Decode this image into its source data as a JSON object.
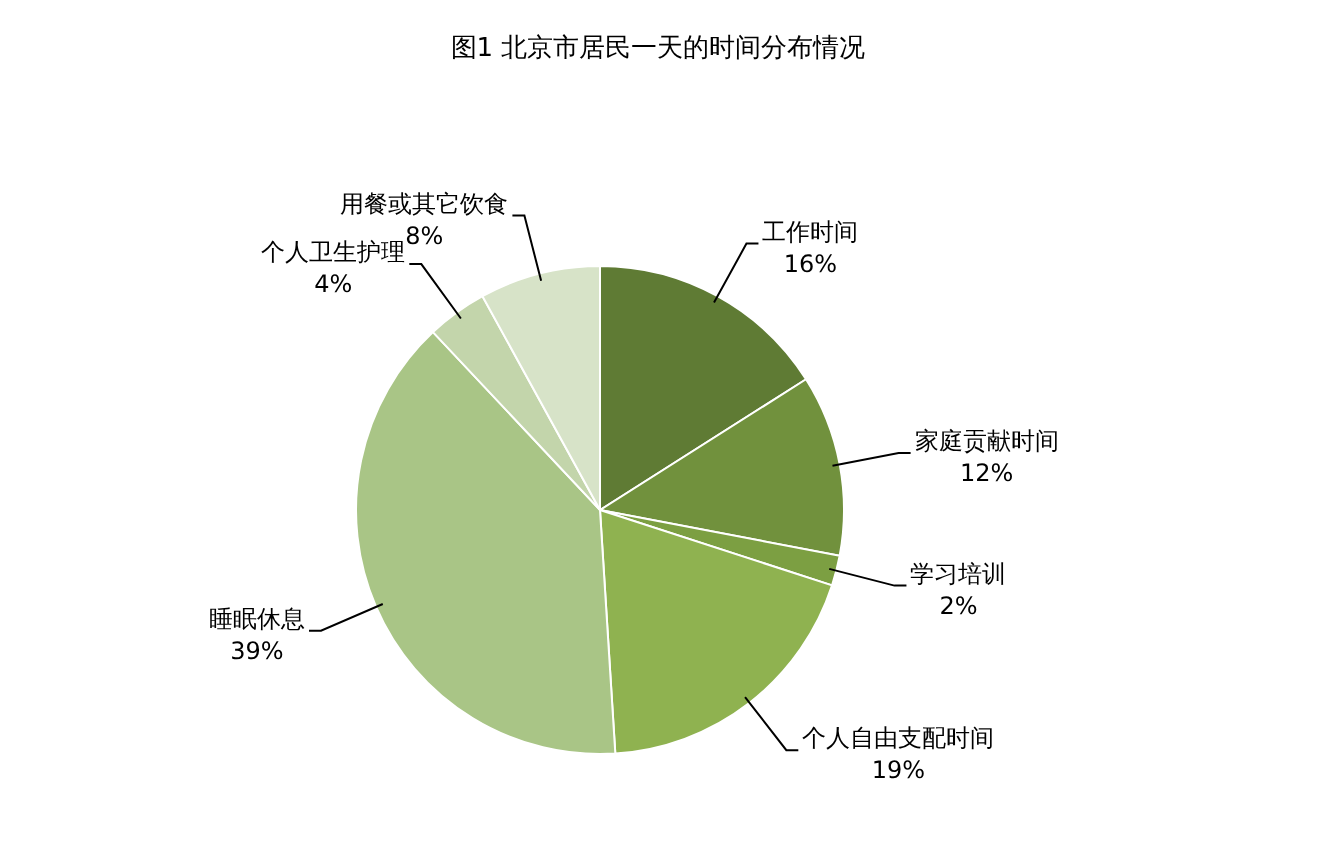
{
  "chart_data": {
    "type": "pie",
    "title": "图1 北京市居民一天的时间分布情况",
    "categories": [
      "工作时间",
      "家庭贡献时间",
      "学习培训",
      "个人自由支配时间",
      "睡眠休息",
      "个人卫生护理",
      "用餐或其它饮食"
    ],
    "values": [
      16,
      12,
      2,
      19,
      39,
      4,
      8
    ],
    "colors": [
      "#5f7b34",
      "#71913d",
      "#7c9f42",
      "#8fb250",
      "#a9c586",
      "#c3d5ab",
      "#d7e3c8"
    ],
    "value_labels": [
      "16%",
      "12%",
      "2%",
      "19%",
      "39%",
      "4%",
      "8%"
    ]
  }
}
